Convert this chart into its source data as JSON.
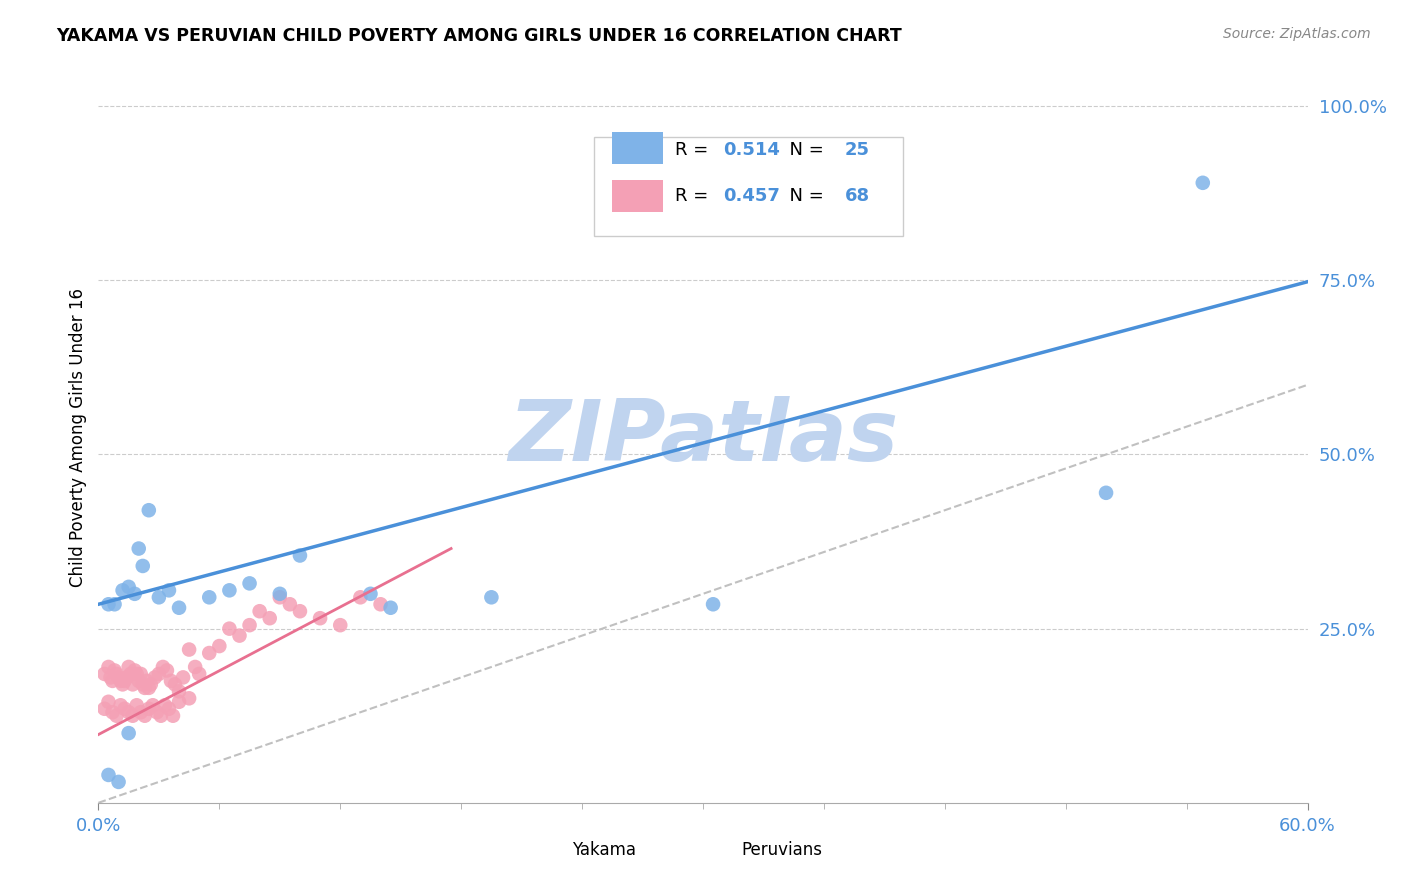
{
  "title": "YAKAMA VS PERUVIAN CHILD POVERTY AMONG GIRLS UNDER 16 CORRELATION CHART",
  "source": "Source: ZipAtlas.com",
  "ylabel": "Child Poverty Among Girls Under 16",
  "xlim": [
    0.0,
    0.6
  ],
  "ylim": [
    0.0,
    1.05
  ],
  "ytick_positions": [
    0.25,
    0.5,
    0.75,
    1.0
  ],
  "ytick_labels": [
    "25.0%",
    "50.0%",
    "75.0%",
    "100.0%"
  ],
  "R_yakama": 0.514,
  "N_yakama": 25,
  "R_peruvian": 0.457,
  "N_peruvian": 68,
  "yakama_color": "#7fb3e8",
  "peruvian_color": "#f4a0b5",
  "yakama_line_color": "#4a90d9",
  "peruvian_line_color": "#e87090",
  "watermark": "ZIPatlas",
  "watermark_color": "#c0d4ef",
  "yakama_x": [
    0.005,
    0.008,
    0.012,
    0.015,
    0.018,
    0.02,
    0.022,
    0.025,
    0.03,
    0.035,
    0.04,
    0.055,
    0.065,
    0.075,
    0.09,
    0.1,
    0.135,
    0.145,
    0.195,
    0.005,
    0.01,
    0.015,
    0.305,
    0.5,
    0.548
  ],
  "yakama_y": [
    0.285,
    0.285,
    0.305,
    0.31,
    0.3,
    0.365,
    0.34,
    0.42,
    0.295,
    0.305,
    0.28,
    0.295,
    0.305,
    0.315,
    0.3,
    0.355,
    0.3,
    0.28,
    0.295,
    0.04,
    0.03,
    0.1,
    0.285,
    0.445,
    0.89
  ],
  "peruvian_x": [
    0.003,
    0.005,
    0.006,
    0.007,
    0.008,
    0.009,
    0.01,
    0.011,
    0.012,
    0.013,
    0.014,
    0.015,
    0.016,
    0.017,
    0.018,
    0.019,
    0.02,
    0.021,
    0.022,
    0.023,
    0.024,
    0.025,
    0.026,
    0.028,
    0.03,
    0.032,
    0.034,
    0.036,
    0.038,
    0.04,
    0.042,
    0.045,
    0.048,
    0.05,
    0.055,
    0.06,
    0.065,
    0.07,
    0.075,
    0.08,
    0.085,
    0.09,
    0.095,
    0.1,
    0.11,
    0.12,
    0.13,
    0.14,
    0.003,
    0.005,
    0.007,
    0.009,
    0.011,
    0.013,
    0.015,
    0.017,
    0.019,
    0.021,
    0.023,
    0.025,
    0.027,
    0.029,
    0.031,
    0.033,
    0.035,
    0.037,
    0.04,
    0.045
  ],
  "peruvian_y": [
    0.185,
    0.195,
    0.18,
    0.175,
    0.19,
    0.185,
    0.18,
    0.175,
    0.17,
    0.175,
    0.18,
    0.195,
    0.185,
    0.17,
    0.19,
    0.185,
    0.175,
    0.185,
    0.17,
    0.165,
    0.175,
    0.165,
    0.17,
    0.18,
    0.185,
    0.195,
    0.19,
    0.175,
    0.17,
    0.16,
    0.18,
    0.22,
    0.195,
    0.185,
    0.215,
    0.225,
    0.25,
    0.24,
    0.255,
    0.275,
    0.265,
    0.295,
    0.285,
    0.275,
    0.265,
    0.255,
    0.295,
    0.285,
    0.135,
    0.145,
    0.13,
    0.125,
    0.14,
    0.135,
    0.13,
    0.125,
    0.14,
    0.13,
    0.125,
    0.135,
    0.14,
    0.13,
    0.125,
    0.14,
    0.135,
    0.125,
    0.145,
    0.15
  ],
  "yakama_trend_x": [
    0.0,
    0.6
  ],
  "yakama_trend_y": [
    0.285,
    0.748
  ],
  "peruvian_trend_x": [
    0.0,
    0.175
  ],
  "peruvian_trend_y": [
    0.098,
    0.365
  ],
  "ref_line_x": [
    0.0,
    1.0
  ],
  "ref_line_y": [
    0.0,
    1.0
  ]
}
